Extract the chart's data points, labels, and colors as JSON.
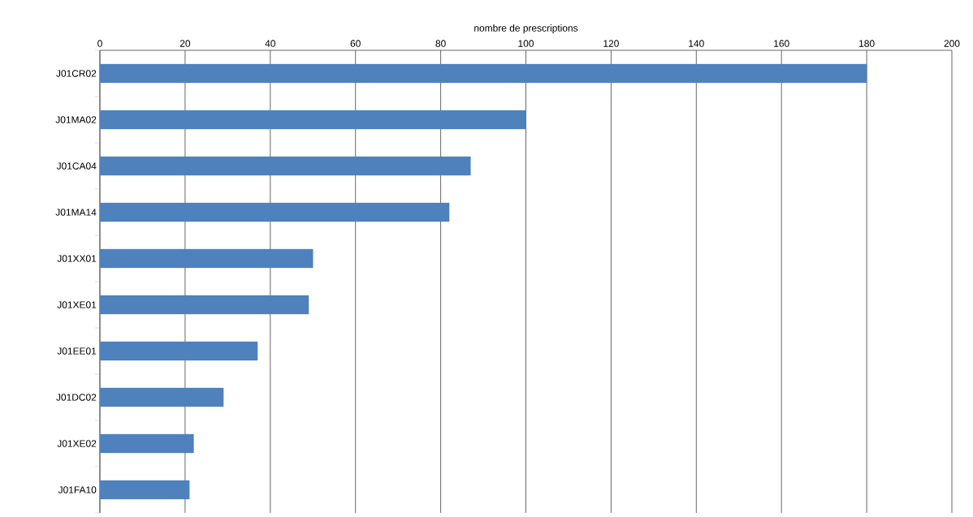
{
  "chart_data": {
    "type": "bar",
    "orientation": "horizontal",
    "xlabel": "nombre de prescriptions",
    "categories": [
      "J01CR02",
      "J01MA02",
      "J01CA04",
      "J01MA14",
      "J01XX01",
      "J01XE01",
      "J01EE01",
      "J01DC02",
      "J01XE02",
      "J01FA10"
    ],
    "values": [
      180,
      100,
      87,
      82,
      50,
      49,
      37,
      29,
      22,
      21
    ],
    "color": "#4f81bd",
    "xlim": [
      0,
      200
    ],
    "xticks": [
      0,
      20,
      40,
      60,
      80,
      100,
      120,
      140,
      160,
      180,
      200
    ],
    "grid": "x"
  }
}
